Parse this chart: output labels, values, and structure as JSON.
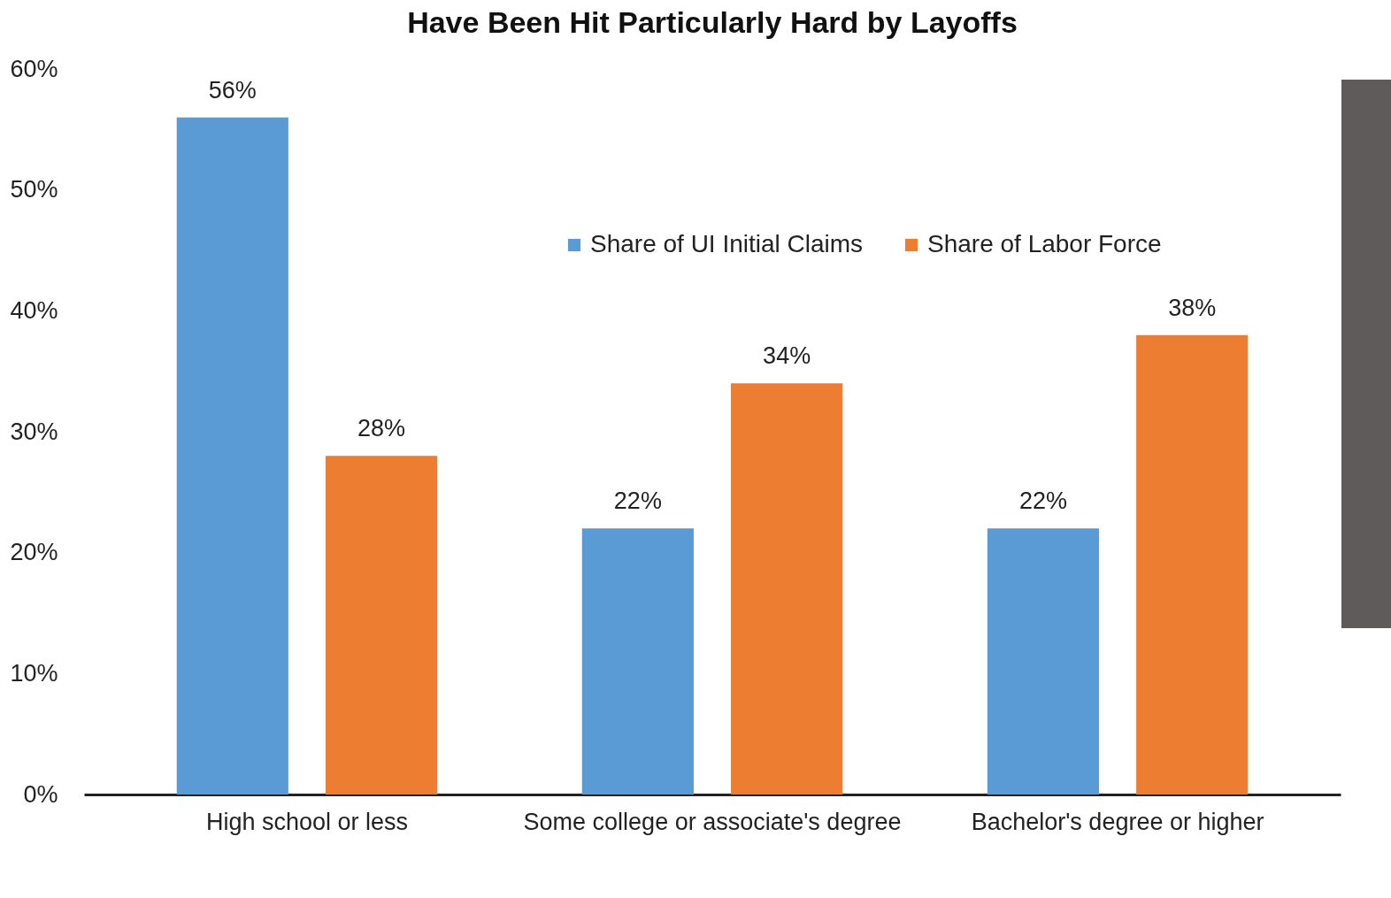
{
  "chart_data": {
    "type": "bar",
    "title": "Have Been Hit Particularly Hard by Layoffs",
    "categories": [
      "High school or less",
      "Some college or associate's degree",
      "Bachelor's degree or higher"
    ],
    "series": [
      {
        "name": "Share of UI Initial Claims",
        "color": "#5b9bd5",
        "values": [
          56,
          22,
          22
        ],
        "value_labels": [
          "56%",
          "22%",
          "22%"
        ]
      },
      {
        "name": "Share of Labor Force",
        "color": "#ed7d31",
        "values": [
          28,
          34,
          38
        ],
        "value_labels": [
          "28%",
          "34%",
          "38%"
        ]
      }
    ],
    "ylim": [
      0,
      60
    ],
    "yticks": [
      {
        "value": 0,
        "label": "0%"
      },
      {
        "value": 10,
        "label": "10%"
      },
      {
        "value": 20,
        "label": "20%"
      },
      {
        "value": 30,
        "label": "30%"
      },
      {
        "value": 40,
        "label": "40%"
      },
      {
        "value": 50,
        "label": "50%"
      },
      {
        "value": 60,
        "label": "60%"
      }
    ],
    "grid": false,
    "legend": "top"
  }
}
